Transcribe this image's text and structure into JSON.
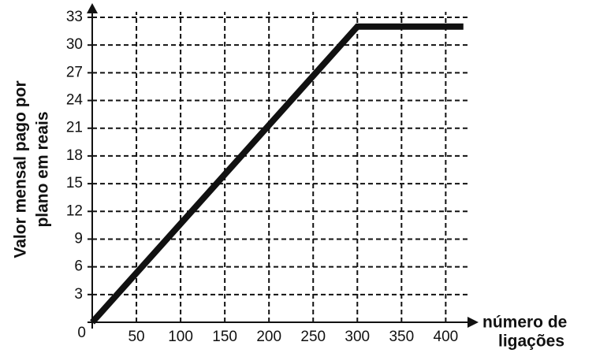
{
  "chart_data": {
    "type": "line",
    "ylabel": [
      "Valor mensal pago por",
      "plano em reais"
    ],
    "xlabel": [
      "número de",
      "ligações"
    ],
    "x": [
      0,
      300,
      420
    ],
    "series": [
      {
        "values": [
          0,
          32,
          32
        ],
        "color": "#111111"
      }
    ],
    "xlim": [
      0,
      430
    ],
    "ylim": [
      0,
      33
    ],
    "xticks": [
      50,
      100,
      150,
      200,
      250,
      300,
      350,
      400
    ],
    "yticks": [
      0,
      3,
      6,
      9,
      12,
      15,
      18,
      21,
      24,
      27,
      30,
      33
    ],
    "grid": true
  }
}
